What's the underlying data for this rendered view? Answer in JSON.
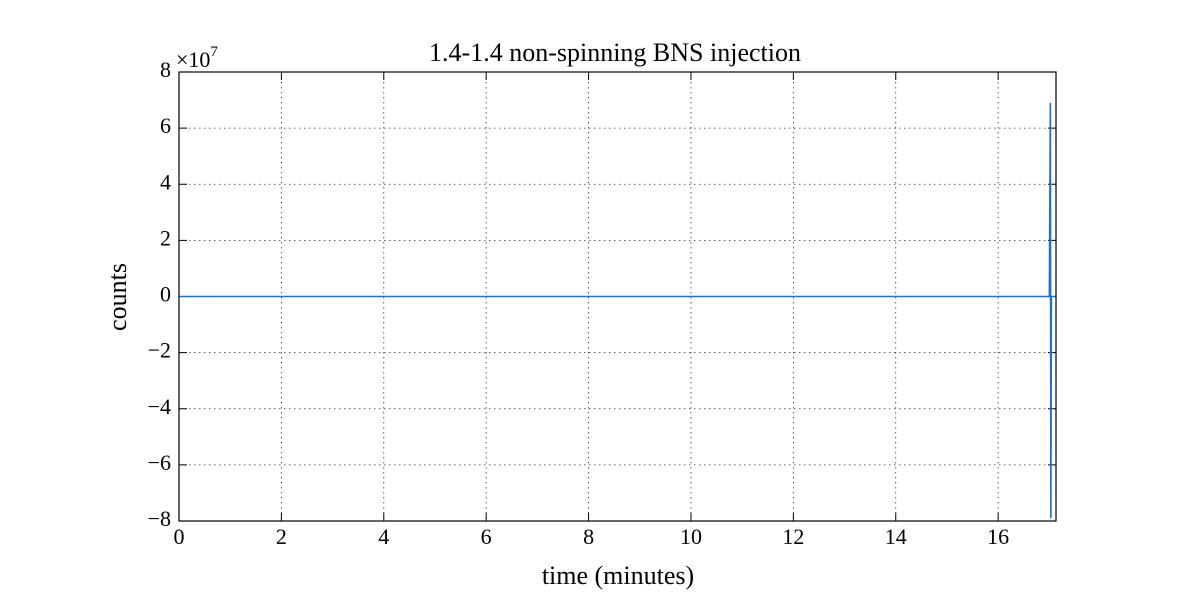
{
  "chart_data": {
    "type": "line",
    "title": "1.4-1.4 non-spinning BNS injection",
    "x_label": "time (minutes)",
    "y_label": "counts",
    "y_offset_text": {
      "base": "×10",
      "exponent": "7"
    },
    "x": [
      0,
      17.0,
      17.02,
      17.03,
      17.04,
      17.13
    ],
    "series": [
      {
        "name": "counts",
        "color": "#1f6fd6",
        "values": [
          0,
          0,
          69000000,
          -79000000,
          0,
          0
        ]
      }
    ],
    "xlim": [
      0,
      17.13
    ],
    "xticks": [
      0,
      2,
      4,
      6,
      8,
      10,
      12,
      14,
      16
    ],
    "ylim": [
      -80000000,
      80000000
    ],
    "yticks": [
      {
        "value": -80000000,
        "label": "−8"
      },
      {
        "value": -60000000,
        "label": "−6"
      },
      {
        "value": -40000000,
        "label": "−4"
      },
      {
        "value": -20000000,
        "label": "−2"
      },
      {
        "value": 0,
        "label": "0"
      },
      {
        "value": 20000000,
        "label": "2"
      },
      {
        "value": 40000000,
        "label": "4"
      },
      {
        "value": 60000000,
        "label": "6"
      },
      {
        "value": 80000000,
        "label": "8"
      }
    ],
    "grid": true
  }
}
